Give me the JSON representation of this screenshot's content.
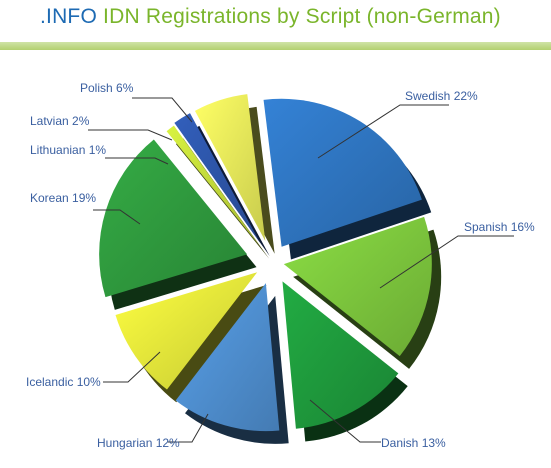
{
  "title": {
    "prefix": ".INFO",
    "main": "IDN Registrations by Script (non-German)"
  },
  "chart_data": {
    "type": "pie",
    "exploded": true,
    "three_d": true,
    "title": ".INFO IDN Registrations by Script (non-German)",
    "unit": "%",
    "slices": [
      {
        "name": "Swedish",
        "label": "Swedish 22%",
        "value": 22,
        "color": "#2e74bf"
      },
      {
        "name": "Spanish",
        "label": "Spanish 16%",
        "value": 16,
        "color": "#7cc63d"
      },
      {
        "name": "Danish",
        "label": "Danish 13%",
        "value": 13,
        "color": "#1e9a3c"
      },
      {
        "name": "Hungarian",
        "label": "Hungarian 12%",
        "value": 12,
        "color": "#4f8fd0"
      },
      {
        "name": "Icelandic",
        "label": "Icelandic 10%",
        "value": 10,
        "color": "#e4ea3a"
      },
      {
        "name": "Korean",
        "label": "Korean 19%",
        "value": 19,
        "color": "#2f9a3e"
      },
      {
        "name": "Lithuanian",
        "label": "Lithuanian 1%",
        "value": 1,
        "color": "#c2d93a"
      },
      {
        "name": "Latvian",
        "label": "Latvian 2%",
        "value": 2,
        "color": "#2d55a8"
      },
      {
        "name": "Polish",
        "label": "Polish 6%",
        "value": 6,
        "color": "#e7ec5a"
      }
    ]
  }
}
